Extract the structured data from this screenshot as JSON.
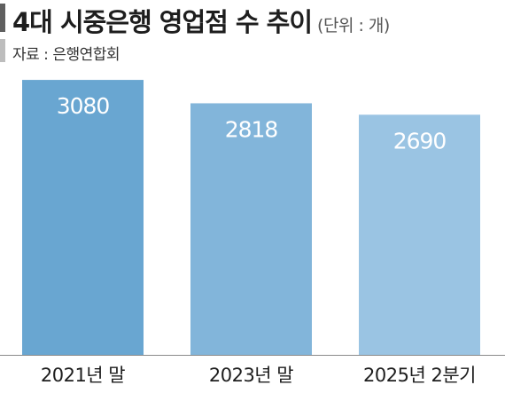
{
  "header": {
    "title": "4대 시중은행 영업점 수 추이",
    "unit": "(단위 : 개)",
    "source": "자료 : 은행연합회"
  },
  "colors": {
    "bars": [
      "#69a6d1",
      "#82b5da",
      "#9ac4e3"
    ],
    "baseline": "#8a8a8a"
  },
  "chart_data": {
    "type": "bar",
    "categories": [
      "2021년 말",
      "2023년 말",
      "2025년 2분기"
    ],
    "values": [
      3080,
      2818,
      2690
    ],
    "data_labels": [
      "3080",
      "2818",
      "2690"
    ],
    "ylim": [
      0,
      3200
    ],
    "grid": false,
    "legend": "none"
  }
}
